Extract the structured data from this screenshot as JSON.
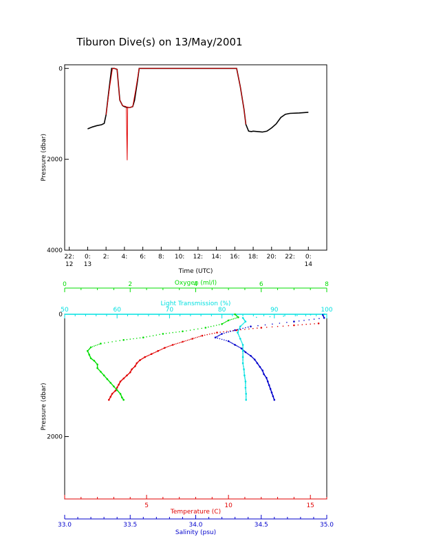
{
  "title": "Tiburon Dive(s) on 13/May/2001",
  "colors": {
    "black": "#000000",
    "red": "#e00000",
    "green": "#00dd00",
    "cyan": "#00e0e0",
    "blue": "#0000cc"
  },
  "chart_data": [
    {
      "type": "line",
      "xlabel": "Time (UTC)",
      "ylabel": "Pressure (dbar)",
      "x_ticks": [
        {
          "line1": "22:",
          "line2": "12"
        },
        {
          "line1": "0:",
          "line2": "13"
        },
        {
          "line1": "2:",
          "line2": ""
        },
        {
          "line1": "4:",
          "line2": ""
        },
        {
          "line1": "6:",
          "line2": ""
        },
        {
          "line1": "8:",
          "line2": ""
        },
        {
          "line1": "10:",
          "line2": ""
        },
        {
          "line1": "12:",
          "line2": ""
        },
        {
          "line1": "14:",
          "line2": ""
        },
        {
          "line1": "16:",
          "line2": ""
        },
        {
          "line1": "18:",
          "line2": ""
        },
        {
          "line1": "20:",
          "line2": ""
        },
        {
          "line1": "22:",
          "line2": ""
        },
        {
          "line1": "0:",
          "line2": "14"
        }
      ],
      "x_hours": [
        -2,
        0,
        2,
        4,
        6,
        8,
        10,
        12,
        14,
        16,
        18,
        20,
        22,
        24
      ],
      "xlim_hours": [
        -2.5,
        26
      ],
      "y_ticks": [
        "0",
        "2000",
        "4000"
      ],
      "y_tick_values": [
        0,
        2000,
        4000
      ],
      "ylim": [
        4000,
        -80
      ],
      "series": [
        {
          "color": "black",
          "x": [
            0,
            0.5,
            1.0,
            1.5,
            1.8,
            2.0,
            2.3,
            2.6,
            2.9,
            3.2,
            3.5,
            3.8,
            4.0,
            4.3,
            4.6,
            4.9,
            5.1,
            5.4,
            5.6,
            6.0,
            10,
            14,
            16.2,
            16.6,
            17.0,
            17.2,
            17.5,
            17.8,
            18.0,
            18.5,
            19.0,
            19.5,
            20.0,
            20.5,
            21.0,
            21.5,
            22.0,
            23.0,
            24.0
          ],
          "y": [
            1330,
            1290,
            1260,
            1240,
            1210,
            1020,
            500,
            0,
            0,
            20,
            700,
            820,
            840,
            860,
            860,
            840,
            700,
            300,
            0,
            0,
            0,
            0,
            0,
            400,
            900,
            1230,
            1380,
            1390,
            1380,
            1390,
            1400,
            1380,
            1310,
            1220,
            1080,
            1010,
            990,
            980,
            965
          ]
        },
        {
          "color": "red",
          "x": [
            2.0,
            2.4,
            2.7,
            2.9,
            3.2,
            3.5,
            3.8,
            4.2,
            4.3,
            4.35,
            4.4,
            4.6,
            4.9,
            5.2,
            5.6,
            6.0,
            10,
            14,
            16.2,
            16.6,
            17.0,
            17.2
          ],
          "y": [
            1020,
            400,
            0,
            0,
            20,
            700,
            820,
            840,
            2020,
            840,
            860,
            860,
            840,
            500,
            0,
            0,
            0,
            0,
            0,
            400,
            900,
            1230
          ]
        }
      ]
    },
    {
      "type": "scatter",
      "ylabel": "Pressure (dbar)",
      "y_ticks": [
        "0",
        "2000"
      ],
      "y_tick_values": [
        0,
        2000
      ],
      "ylim": [
        3020,
        0
      ],
      "axes": {
        "oxygen": {
          "label": "Oxygen (ml/l)",
          "ticks": [
            "0",
            "2",
            "4",
            "6",
            "8"
          ],
          "range": [
            0,
            8
          ],
          "color": "green"
        },
        "light": {
          "label": "Light Transmission (%)",
          "ticks": [
            "50",
            "60",
            "70",
            "80",
            "90",
            "100"
          ],
          "range": [
            50,
            100
          ],
          "color": "cyan"
        },
        "temperature": {
          "label": "Temperature (C)",
          "ticks": [
            "5",
            "10",
            "15"
          ],
          "range": [
            0,
            16
          ],
          "color": "red"
        },
        "salinity": {
          "label": "Salinity (psu)",
          "ticks": [
            "33.0",
            "33.5",
            "34.0",
            "34.5",
            "35.0"
          ],
          "range": [
            33.0,
            35.0
          ],
          "color": "blue"
        }
      },
      "series": [
        {
          "name": "Temperature (C)",
          "axis": "temperature",
          "color": "red",
          "pressure": [
            150,
            180,
            220,
            260,
            300,
            350,
            400,
            450,
            500,
            550,
            600,
            650,
            700,
            750,
            800,
            850,
            900,
            950,
            1000,
            1050,
            1100,
            1150,
            1200,
            1250,
            1300,
            1350,
            1400
          ],
          "value": [
            15.5,
            14.0,
            12.0,
            10.5,
            9.3,
            8.4,
            7.8,
            7.2,
            6.6,
            6.1,
            5.7,
            5.3,
            4.9,
            4.6,
            4.4,
            4.3,
            4.1,
            4.0,
            3.8,
            3.6,
            3.4,
            3.3,
            3.2,
            3.1,
            2.9,
            2.8,
            2.7
          ]
        },
        {
          "name": "Salinity (psu)",
          "axis": "salinity",
          "color": "blue",
          "pressure": [
            10,
            60,
            120,
            200,
            260,
            320,
            380,
            440,
            500,
            560,
            620,
            680,
            740,
            800,
            860,
            920,
            980,
            1040,
            1100,
            1160,
            1220,
            1280,
            1340,
            1400
          ],
          "value": [
            34.97,
            34.98,
            34.75,
            34.42,
            34.3,
            34.2,
            34.15,
            34.25,
            34.3,
            34.35,
            34.38,
            34.42,
            34.45,
            34.47,
            34.49,
            34.51,
            34.52,
            34.54,
            34.55,
            34.56,
            34.57,
            34.58,
            34.59,
            34.6
          ]
        },
        {
          "name": "Oxygen (ml/l)",
          "axis": "oxygen",
          "color": "green",
          "pressure": [
            0,
            50,
            100,
            160,
            220,
            280,
            320,
            380,
            420,
            480,
            540,
            600,
            660,
            720,
            760,
            820,
            880,
            940,
            1000,
            1060,
            1120,
            1180,
            1240,
            1300,
            1360,
            1400
          ],
          "value": [
            5.2,
            5.3,
            5.0,
            4.8,
            4.3,
            3.6,
            3.0,
            2.4,
            1.8,
            1.1,
            0.8,
            0.7,
            0.75,
            0.8,
            0.9,
            1.0,
            1.0,
            1.1,
            1.2,
            1.3,
            1.4,
            1.5,
            1.6,
            1.7,
            1.75,
            1.8
          ]
        },
        {
          "name": "Light Transmission (%)",
          "axis": "light",
          "color": "cyan",
          "pressure": [
            0,
            60,
            120,
            200,
            300,
            400,
            500,
            600,
            700,
            800,
            900,
            1000,
            1100,
            1200,
            1300,
            1400
          ],
          "value": [
            99.5,
            84.0,
            84.5,
            83.5,
            83.0,
            83.5,
            84.0,
            84.0,
            84.0,
            84.0,
            84.2,
            84.3,
            84.5,
            84.5,
            84.6,
            84.6
          ]
        }
      ]
    }
  ]
}
